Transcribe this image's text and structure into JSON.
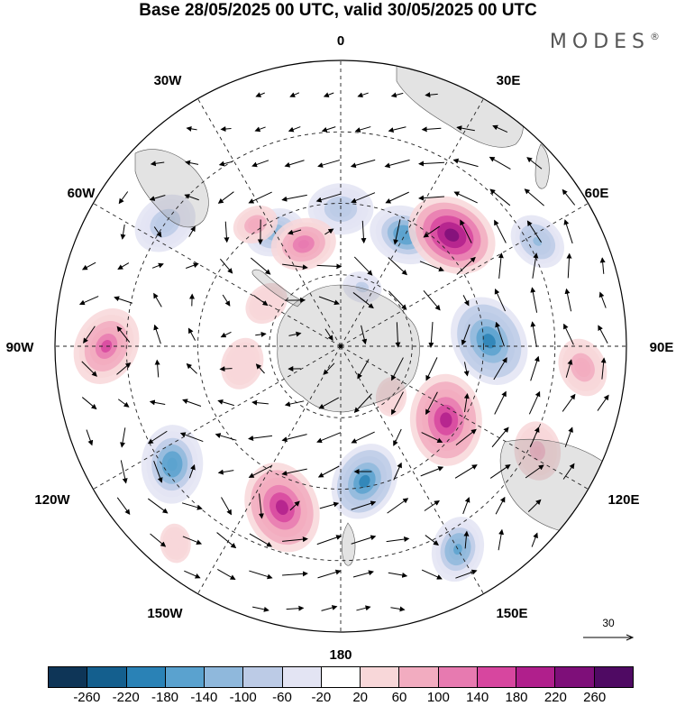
{
  "title": "Base 28/05/2025 00 UTC, valid 30/05/2025 00 UTC",
  "brand": {
    "name": "MODES",
    "mark": "®"
  },
  "longitude_labels": [
    "0",
    "30E",
    "60E",
    "90E",
    "120E",
    "150E",
    "180",
    "150W",
    "120W",
    "90W",
    "60W",
    "30W"
  ],
  "vector_reference": {
    "value": "30"
  },
  "colorbar": {
    "ticks": [
      "-260",
      "-220",
      "-180",
      "-140",
      "-100",
      "-60",
      "-20",
      "20",
      "60",
      "100",
      "140",
      "180",
      "220",
      "260"
    ],
    "colors": [
      "#0e3557",
      "#145f8e",
      "#2a82b6",
      "#5aa2cf",
      "#8fb8dc",
      "#bccbe6",
      "#e3e4f3",
      "#ffffff",
      "#f8d7d9",
      "#f2acc0",
      "#e77ab0",
      "#d7469f",
      "#b01f8c",
      "#7e0f79",
      "#4f0a63"
    ]
  },
  "anomalies": [
    {
      "lon": 0,
      "colat": 0.48,
      "value": -110,
      "r": 0.1
    },
    {
      "lon": -30,
      "colat": 0.46,
      "value": -150,
      "r": 0.09
    },
    {
      "lon": -35,
      "colat": 0.52,
      "value": 110,
      "r": 0.07
    },
    {
      "lon": -20,
      "colat": 0.38,
      "value": 160,
      "r": 0.1
    },
    {
      "lon": 30,
      "colat": 0.45,
      "value": -200,
      "r": 0.11
    },
    {
      "lon": 45,
      "colat": 0.55,
      "value": 280,
      "r": 0.14
    },
    {
      "lon": 62,
      "colat": 0.78,
      "value": -130,
      "r": 0.09
    },
    {
      "lon": 88,
      "colat": 0.52,
      "value": -230,
      "r": 0.14
    },
    {
      "lon": 95,
      "colat": 0.85,
      "value": 110,
      "r": 0.09
    },
    {
      "lon": 125,
      "colat": 0.45,
      "value": 240,
      "r": 0.14
    },
    {
      "lon": 118,
      "colat": 0.78,
      "value": 90,
      "r": 0.09
    },
    {
      "lon": 150,
      "colat": 0.82,
      "value": -170,
      "r": 0.1
    },
    {
      "lon": 170,
      "colat": 0.48,
      "value": -230,
      "r": 0.12
    },
    {
      "lon": -160,
      "colat": 0.6,
      "value": 230,
      "r": 0.14
    },
    {
      "lon": -125,
      "colat": 0.72,
      "value": -200,
      "r": 0.12
    },
    {
      "lon": -90,
      "colat": 0.82,
      "value": 170,
      "r": 0.12
    },
    {
      "lon": -55,
      "colat": 0.75,
      "value": -100,
      "r": 0.1
    },
    {
      "lon": -100,
      "colat": 0.35,
      "value": 50,
      "r": 0.08
    },
    {
      "lon": -60,
      "colat": 0.3,
      "value": 60,
      "r": 0.07
    },
    {
      "lon": 20,
      "colat": 0.22,
      "value": -80,
      "r": 0.06
    },
    {
      "lon": 135,
      "colat": 0.25,
      "value": 40,
      "r": 0.06
    },
    {
      "lon": -140,
      "colat": 0.9,
      "value": 60,
      "r": 0.06
    }
  ]
}
